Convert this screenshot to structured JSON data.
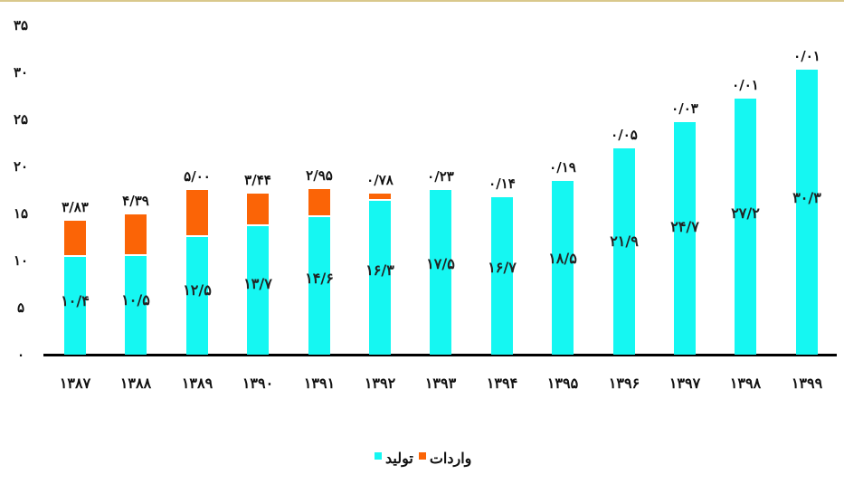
{
  "chart_data": {
    "type": "bar",
    "stacked": true,
    "title": "",
    "xlabel": "",
    "ylabel": "",
    "ylim": [
      0,
      35
    ],
    "grid": false,
    "legend_position": "bottom",
    "yticks": [
      "۰",
      "۵",
      "۱۰",
      "۱۵",
      "۲۰",
      "۲۵",
      "۳۰",
      "۳۵"
    ],
    "ytick_values": [
      0,
      5,
      10,
      15,
      20,
      25,
      30,
      35
    ],
    "categories": [
      "۱۳۸۷",
      "۱۳۸۸",
      "۱۳۸۹",
      "۱۳۹۰",
      "۱۳۹۱",
      "۱۳۹۲",
      "۱۳۹۳",
      "۱۳۹۴",
      "۱۳۹۵",
      "۱۳۹۶",
      "۱۳۹۷",
      "۱۳۹۸",
      "۱۳۹۹"
    ],
    "categories_latin": [
      1387,
      1388,
      1389,
      1390,
      1391,
      1392,
      1393,
      1394,
      1395,
      1396,
      1397,
      1398,
      1399
    ],
    "series": [
      {
        "name": "تولید",
        "color": "#15f7f2",
        "values": [
          10.4,
          10.5,
          12.5,
          13.7,
          14.6,
          16.3,
          17.5,
          16.7,
          18.5,
          21.9,
          24.7,
          27.2,
          30.3
        ],
        "labels": [
          "۱۰/۴",
          "۱۰/۵",
          "۱۲/۵",
          "۱۳/۷",
          "۱۴/۶",
          "۱۶/۳",
          "۱۷/۵",
          "۱۶/۷",
          "۱۸/۵",
          "۲۱/۹",
          "۲۴/۷",
          "۲۷/۲",
          "۳۰/۳"
        ]
      },
      {
        "name": "واردات",
        "color": "#fb6406",
        "values": [
          3.83,
          4.39,
          5.0,
          3.44,
          2.95,
          0.78,
          0.23,
          0.14,
          0.19,
          0.05,
          0.03,
          0.01,
          0.01
        ],
        "labels": [
          "۳/۸۳",
          "۴/۳۹",
          "۵/۰۰",
          "۳/۴۴",
          "۲/۹۵",
          "۰/۷۸",
          "۰/۲۳",
          "۰/۱۴",
          "۰/۱۹",
          "۰/۰۵",
          "۰/۰۳",
          "۰/۰۱",
          "۰/۰۱"
        ]
      }
    ]
  },
  "legend": {
    "items": [
      {
        "label": "واردات",
        "color": "#fb6406"
      },
      {
        "label": "تولید",
        "color": "#15f7f2"
      }
    ]
  }
}
